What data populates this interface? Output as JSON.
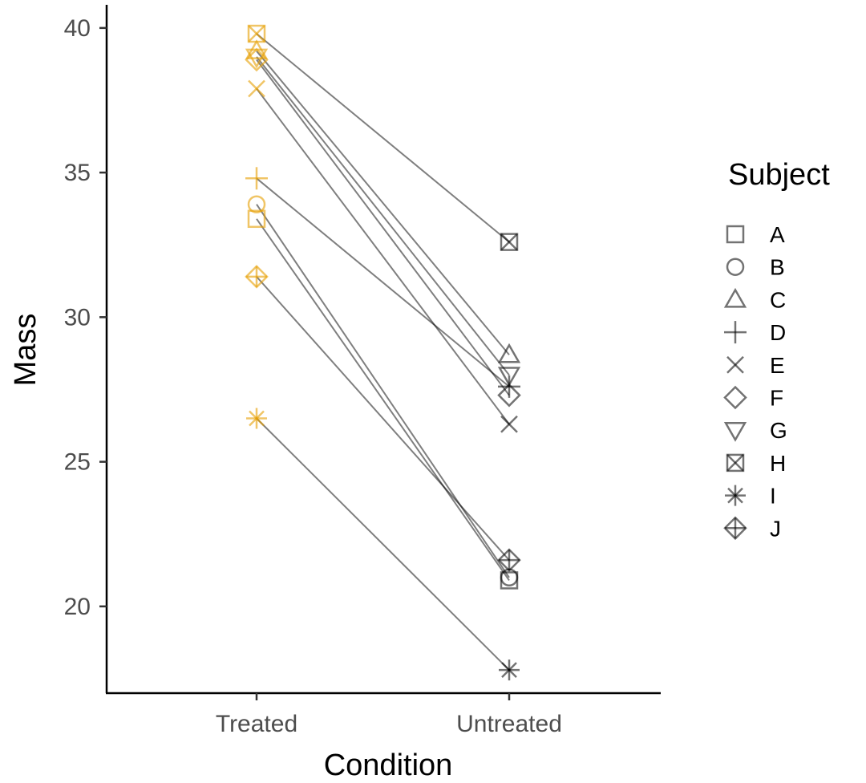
{
  "chart_data": {
    "type": "line",
    "title": "",
    "xlabel": "Condition",
    "ylabel": "Mass",
    "categories": [
      "Treated",
      "Untreated"
    ],
    "ylim": [
      17.0,
      40.8
    ],
    "yticks": [
      20,
      25,
      30,
      35,
      40
    ],
    "grid": false,
    "legend": {
      "title": "Subject",
      "position": "right"
    },
    "colors": {
      "treated": "#E69F00",
      "untreated": "#000000",
      "line": "#000000"
    },
    "series": [
      {
        "name": "A",
        "shape": "square",
        "values": [
          33.4,
          20.9
        ]
      },
      {
        "name": "B",
        "shape": "circle",
        "values": [
          33.9,
          21.0
        ]
      },
      {
        "name": "C",
        "shape": "triangle",
        "values": [
          39.2,
          28.7
        ]
      },
      {
        "name": "D",
        "shape": "plus",
        "values": [
          34.8,
          27.6
        ]
      },
      {
        "name": "E",
        "shape": "cross",
        "values": [
          37.9,
          26.3
        ]
      },
      {
        "name": "F",
        "shape": "diamond",
        "values": [
          38.9,
          27.3
        ]
      },
      {
        "name": "G",
        "shape": "triangle-down",
        "values": [
          39.0,
          28.0
        ]
      },
      {
        "name": "H",
        "shape": "square-cross",
        "values": [
          39.8,
          32.6
        ]
      },
      {
        "name": "I",
        "shape": "asterisk",
        "values": [
          26.5,
          17.8
        ]
      },
      {
        "name": "J",
        "shape": "diamond-plus",
        "values": [
          31.4,
          21.6
        ]
      }
    ]
  }
}
